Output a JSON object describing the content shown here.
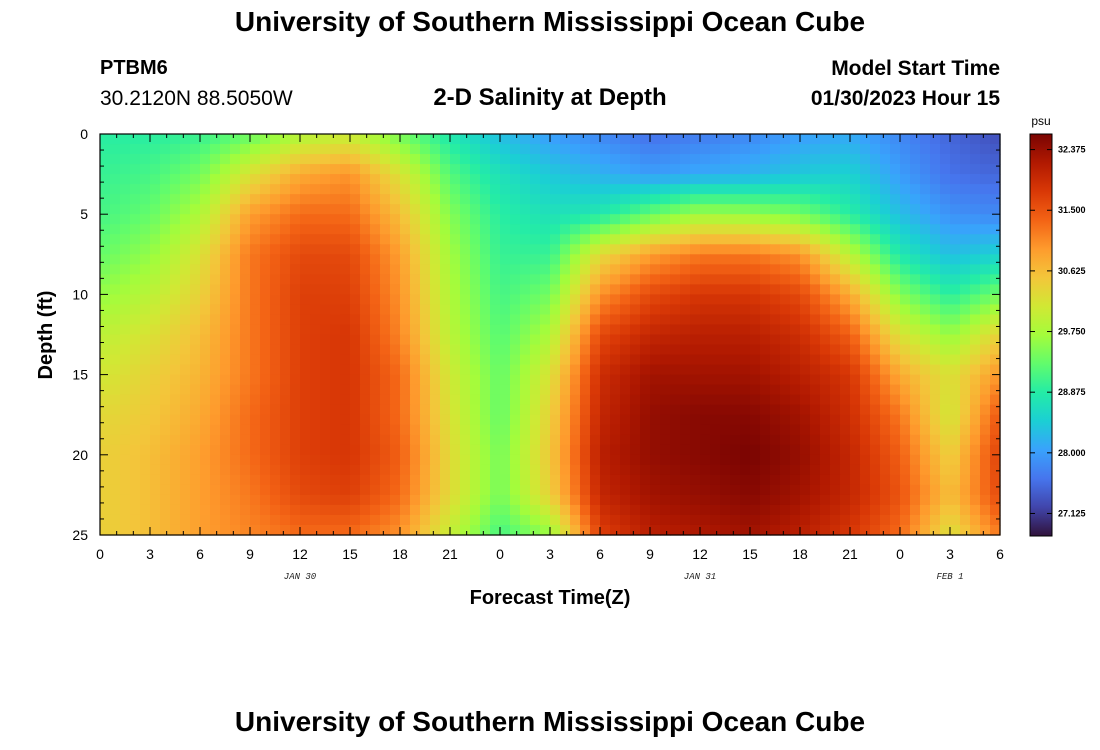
{
  "header": {
    "title": "University of Southern Mississippi Ocean Cube",
    "station": "PTBM6",
    "coords": "30.2120N  88.5050W",
    "subtitle": "2-D Salinity at Depth",
    "start_label": "Model Start Time",
    "start_value": "01/30/2023 Hour 15"
  },
  "footer": {
    "title": "University of Southern Mississippi Ocean Cube"
  },
  "chart_data": {
    "type": "heatmap",
    "title": "2-D Salinity at Depth",
    "xlabel": "Forecast Time(Z)",
    "ylabel": "Depth (ft)",
    "xlim": [
      0,
      54
    ],
    "ylim": [
      25,
      0
    ],
    "x_ticks": [
      0,
      3,
      6,
      9,
      12,
      15,
      18,
      21,
      24,
      27,
      30,
      33,
      36,
      39,
      42,
      45,
      48,
      51,
      54
    ],
    "x_tick_labels": [
      "0",
      "3",
      "6",
      "9",
      "12",
      "15",
      "18",
      "21",
      "0",
      "3",
      "6",
      "9",
      "12",
      "15",
      "18",
      "21",
      "0",
      "3",
      "6"
    ],
    "day_labels": [
      {
        "hour": 12,
        "text": "JAN 30"
      },
      {
        "hour": 36,
        "text": "JAN 31"
      },
      {
        "hour": 51,
        "text": "FEB 1"
      }
    ],
    "y_ticks": [
      0,
      5,
      10,
      15,
      20,
      25
    ],
    "colorbar": {
      "unit": "psu",
      "min": 26.8,
      "max": 32.6,
      "ticks": [
        "32.375",
        "31.500",
        "30.625",
        "29.750",
        "28.875",
        "28.000",
        "27.125"
      ],
      "tick_values": [
        32.375,
        31.5,
        30.625,
        29.75,
        28.875,
        28.0,
        27.125
      ],
      "colors": [
        "#30123b",
        "#4145ab",
        "#4675ed",
        "#39a2fc",
        "#1bcfd4",
        "#24eca6",
        "#61fc6c",
        "#a4fc3b",
        "#d1e834",
        "#f3c63a",
        "#fe9b2d",
        "#f36315",
        "#d93806",
        "#b11901",
        "#7a0402"
      ]
    },
    "salinity_grid_note": "rows = depth 0..25 ft step 2.5, columns = forecast hour 0..54 step 3",
    "depths": [
      0,
      2.5,
      5,
      7.5,
      10,
      12.5,
      15,
      17.5,
      20,
      22.5,
      25
    ],
    "hours": [
      0,
      3,
      6,
      9,
      12,
      15,
      18,
      21,
      24,
      27,
      30,
      33,
      36,
      39,
      42,
      45,
      48,
      51,
      54
    ],
    "values": [
      [
        28.9,
        28.9,
        29.0,
        29.3,
        29.8,
        30.0,
        29.4,
        28.8,
        28.3,
        28.0,
        27.8,
        27.6,
        27.7,
        27.8,
        28.0,
        28.1,
        27.8,
        27.5,
        27.3
      ],
      [
        29.0,
        29.1,
        29.4,
        30.2,
        30.8,
        31.0,
        30.2,
        29.2,
        28.7,
        28.4,
        28.2,
        28.0,
        28.1,
        28.2,
        28.4,
        28.5,
        28.0,
        27.6,
        27.5
      ],
      [
        29.1,
        29.3,
        29.8,
        30.9,
        31.3,
        31.3,
        30.6,
        29.5,
        28.9,
        28.7,
        28.8,
        29.3,
        29.7,
        29.6,
        29.4,
        28.9,
        28.3,
        27.9,
        27.8
      ],
      [
        29.3,
        29.6,
        30.2,
        31.2,
        31.6,
        31.6,
        30.9,
        29.7,
        29.0,
        29.0,
        30.3,
        30.9,
        31.2,
        31.2,
        31.0,
        29.9,
        28.8,
        28.3,
        28.5
      ],
      [
        29.6,
        29.9,
        30.4,
        31.2,
        31.7,
        31.7,
        31.0,
        29.8,
        29.1,
        29.4,
        31.0,
        31.6,
        31.8,
        31.8,
        31.6,
        30.8,
        29.5,
        28.9,
        29.4
      ],
      [
        29.9,
        30.2,
        30.6,
        31.2,
        31.7,
        31.8,
        31.1,
        29.9,
        29.2,
        29.8,
        31.6,
        32.0,
        32.1,
        32.1,
        31.9,
        31.4,
        30.2,
        29.6,
        30.4
      ],
      [
        30.1,
        30.4,
        30.7,
        31.2,
        31.7,
        31.8,
        31.3,
        30.1,
        29.3,
        30.2,
        31.9,
        32.3,
        32.3,
        32.3,
        32.1,
        31.8,
        30.8,
        30.2,
        31.0
      ],
      [
        30.3,
        30.5,
        30.8,
        31.3,
        31.7,
        31.8,
        31.3,
        30.2,
        29.3,
        30.4,
        32.0,
        32.4,
        32.5,
        32.5,
        32.3,
        31.9,
        31.2,
        30.1,
        31.5
      ],
      [
        30.4,
        30.6,
        30.9,
        31.3,
        31.7,
        31.8,
        31.4,
        30.3,
        29.4,
        30.5,
        32.1,
        32.4,
        32.5,
        32.6,
        32.4,
        32.0,
        31.4,
        30.4,
        31.7
      ],
      [
        30.4,
        30.6,
        30.9,
        31.2,
        31.6,
        31.7,
        31.3,
        30.3,
        29.4,
        30.4,
        32.0,
        32.3,
        32.4,
        32.5,
        32.3,
        32.0,
        31.5,
        30.6,
        31.6
      ],
      [
        30.4,
        30.6,
        30.9,
        31.1,
        31.3,
        31.3,
        31.0,
        30.0,
        29.1,
        29.6,
        31.7,
        32.1,
        32.2,
        32.3,
        32.1,
        31.8,
        31.3,
        30.2,
        31.2
      ]
    ]
  }
}
